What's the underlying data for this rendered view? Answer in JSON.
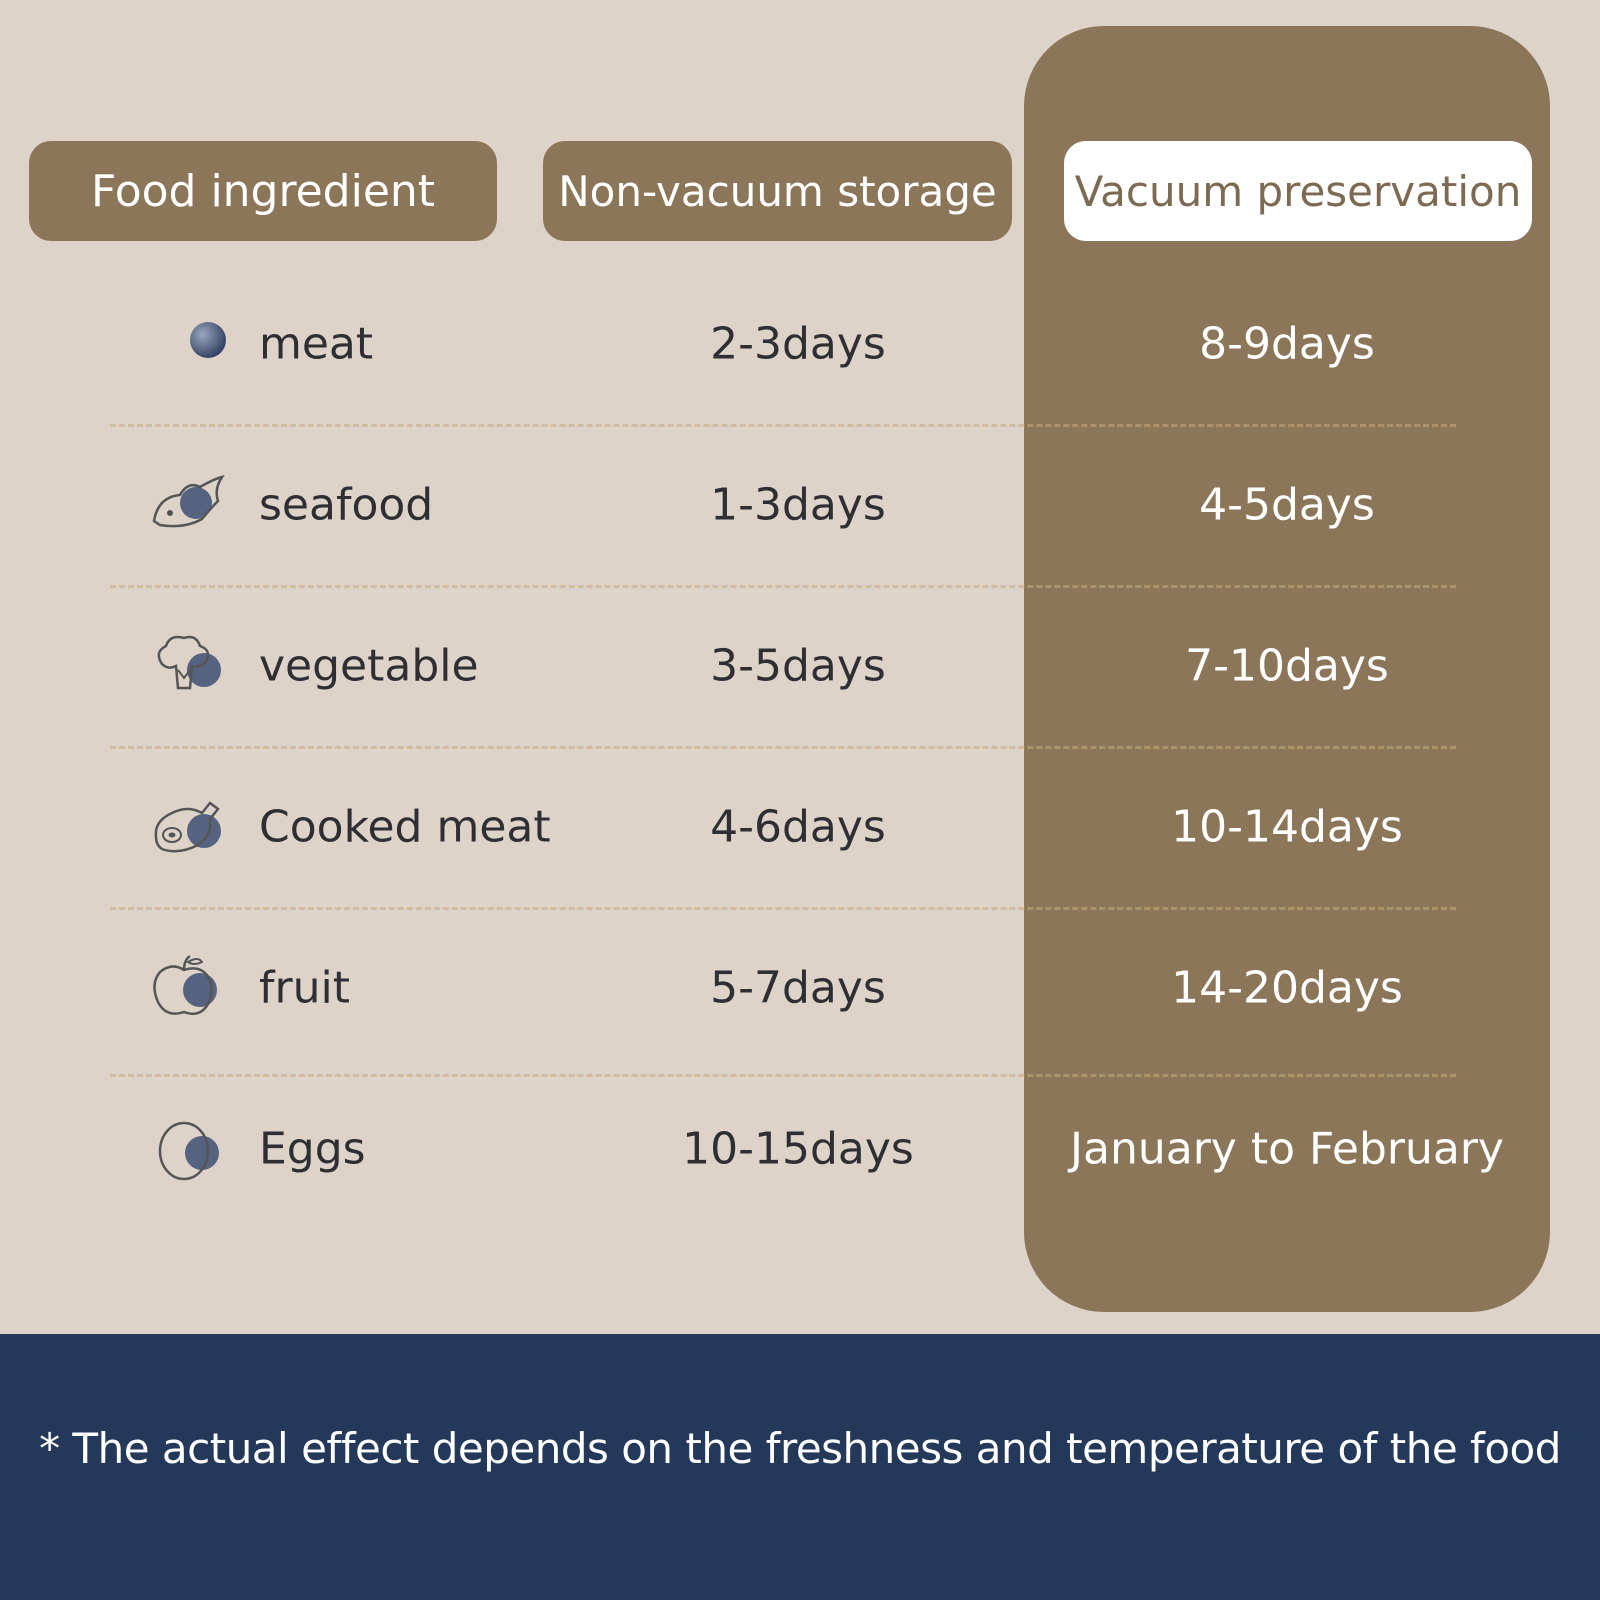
{
  "headers": {
    "food": "Food ingredient",
    "non_vacuum": "Non-vacuum storage",
    "vacuum": "Vacuum preservation"
  },
  "rows": [
    {
      "icon": "meat-icon",
      "name": "meat",
      "non_vacuum": "2-3days",
      "vacuum": "8-9days"
    },
    {
      "icon": "fish-icon",
      "name": "seafood",
      "non_vacuum": "1-3days",
      "vacuum": "4-5days"
    },
    {
      "icon": "broccoli-icon",
      "name": "vegetable",
      "non_vacuum": "3-5days",
      "vacuum": "7-10days"
    },
    {
      "icon": "ham-icon",
      "name": "Cooked meat",
      "non_vacuum": "4-6days",
      "vacuum": "10-14days"
    },
    {
      "icon": "apple-icon",
      "name": "fruit",
      "non_vacuum": "5-7days",
      "vacuum": "14-20days"
    },
    {
      "icon": "egg-icon",
      "name": "Eggs",
      "non_vacuum": "10-15days",
      "vacuum": "January to February"
    }
  ],
  "footer": {
    "note": "* The actual effect depends on the freshness and temperature of the food"
  },
  "colors": {
    "background": "#ddd3c9",
    "accent_brown": "#8c7659",
    "footer_navy": "#24395a",
    "icon_blue": "#3d4f73"
  }
}
